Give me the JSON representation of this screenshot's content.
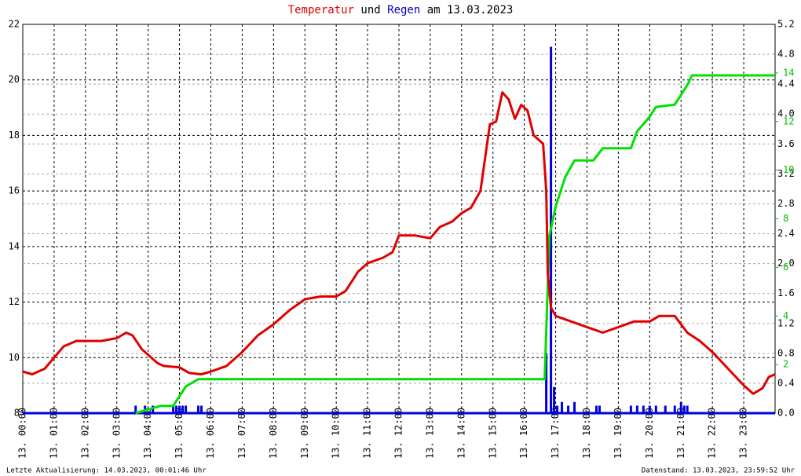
{
  "chart_data": {
    "type": "line",
    "title": [
      {
        "text": "Temperatur",
        "color": "#e00000"
      },
      {
        "text": "und",
        "color": "#000000"
      },
      {
        "text": "Regen",
        "color": "#0000c0"
      },
      {
        "text": "am 13.03.2023",
        "color": "#000000"
      }
    ],
    "footer_left": "Letzte Aktualisierung: 14.03.2023, 00:01:46 Uhr",
    "footer_right": "Datenstand: 13.03.2023, 23:59:52 Uhr",
    "xlim": [
      0,
      24
    ],
    "xticks": [
      {
        "value": 0,
        "label": "13. 00:00"
      },
      {
        "value": 1,
        "label": "13. 01:00"
      },
      {
        "value": 2,
        "label": "13. 02:00"
      },
      {
        "value": 3,
        "label": "13. 03:00"
      },
      {
        "value": 4,
        "label": "13. 04:00"
      },
      {
        "value": 5,
        "label": "13. 05:00"
      },
      {
        "value": 6,
        "label": "13. 06:00"
      },
      {
        "value": 7,
        "label": "13. 07:00"
      },
      {
        "value": 8,
        "label": "13. 08:00"
      },
      {
        "value": 9,
        "label": "13. 09:00"
      },
      {
        "value": 10,
        "label": "13. 10:00"
      },
      {
        "value": 11,
        "label": "13. 11:00"
      },
      {
        "value": 12,
        "label": "13. 12:00"
      },
      {
        "value": 13,
        "label": "13. 13:00"
      },
      {
        "value": 14,
        "label": "13. 14:00"
      },
      {
        "value": 15,
        "label": "13. 15:00"
      },
      {
        "value": 16,
        "label": "13. 16:00"
      },
      {
        "value": 17,
        "label": "13. 17:00"
      },
      {
        "value": 18,
        "label": "13. 18:00"
      },
      {
        "value": 19,
        "label": "13. 19:00"
      },
      {
        "value": 20,
        "label": "13. 20:00"
      },
      {
        "value": 21,
        "label": "13. 21:00"
      },
      {
        "value": 22,
        "label": "13. 22:00"
      },
      {
        "value": 23,
        "label": "13. 23:00"
      }
    ],
    "ylim": [
      8,
      22
    ],
    "yticks": [
      8,
      10,
      12,
      14,
      16,
      18,
      20,
      22
    ],
    "y2lim": [
      0,
      5.2
    ],
    "y2ticks": [
      {
        "value": 0,
        "label": "0.0"
      },
      {
        "value": 0.4,
        "label": "0.4"
      },
      {
        "value": 0.8,
        "label": "0.8"
      },
      {
        "value": 1.2,
        "label": "1.2"
      },
      {
        "value": 1.6,
        "label": "1.6"
      },
      {
        "value": 2,
        "label": "2.0"
      },
      {
        "value": 2.4,
        "label": "2.4"
      },
      {
        "value": 2.8,
        "label": "2.8"
      },
      {
        "value": 3.2,
        "label": "3.2"
      },
      {
        "value": 3.6,
        "label": "3.6"
      },
      {
        "value": 4,
        "label": "4.0"
      },
      {
        "value": 4.4,
        "label": "4.4"
      },
      {
        "value": 4.8,
        "label": "4.8"
      },
      {
        "value": 5.2,
        "label": "5.2"
      }
    ],
    "y3lim": [
      0,
      16
    ],
    "y3ticks": [
      2,
      4,
      6,
      8,
      10,
      12,
      14
    ],
    "y3color": "#00c000",
    "grid": true,
    "series": [
      {
        "type": "bar",
        "axis": "y2",
        "color": "#0000e0",
        "x": [
          3.6,
          3.9,
          4.15,
          4.8,
          4.9,
          5.0,
          5.1,
          5.2,
          5.6,
          5.7,
          16.7,
          16.85,
          16.95,
          17.05,
          17.2,
          17.4,
          17.6,
          18.3,
          18.4,
          19.4,
          19.6,
          19.8,
          20.0,
          20.2,
          20.5,
          20.8,
          21.0,
          21.1,
          21.2
        ],
        "values": [
          0.1,
          0.1,
          0.1,
          0.1,
          0.1,
          0.1,
          0.1,
          0.1,
          0.1,
          0.1,
          0.8,
          4.9,
          0.35,
          0.1,
          0.15,
          0.1,
          0.15,
          0.1,
          0.1,
          0.1,
          0.1,
          0.1,
          0.1,
          0.1,
          0.1,
          0.1,
          0.15,
          0.1,
          0.1
        ]
      },
      {
        "type": "line",
        "axis": "y3",
        "color": "#00e000",
        "x": [
          3.6,
          4.4,
          4.8,
          5.2,
          5.6,
          16.65,
          16.8,
          17.0,
          17.3,
          17.6,
          18.2,
          18.5,
          19.4,
          19.6,
          20.0,
          20.2,
          20.8,
          21.2,
          21.35,
          24
        ],
        "values": [
          0,
          0.3,
          0.3,
          1.1,
          1.4,
          1.4,
          7.3,
          8.5,
          9.7,
          10.4,
          10.4,
          10.9,
          10.9,
          11.6,
          12.2,
          12.6,
          12.7,
          13.5,
          13.9,
          13.9
        ]
      },
      {
        "type": "line",
        "axis": "y",
        "color": "#e00000",
        "x": [
          0,
          0.3,
          0.7,
          1.0,
          1.3,
          1.7,
          2.0,
          2.5,
          3.0,
          3.3,
          3.5,
          3.8,
          4.0,
          4.3,
          4.5,
          5.0,
          5.3,
          5.7,
          6.0,
          6.5,
          7.0,
          7.5,
          8.0,
          8.5,
          9.0,
          9.5,
          10.0,
          10.3,
          10.7,
          11.0,
          11.5,
          11.8,
          12.0,
          12.5,
          13.0,
          13.3,
          13.7,
          14.0,
          14.3,
          14.6,
          14.9,
          15.1,
          15.3,
          15.5,
          15.7,
          15.9,
          16.1,
          16.3,
          16.6,
          16.7,
          16.75,
          16.85,
          17.0,
          17.5,
          18.0,
          18.5,
          19.0,
          19.5,
          20.0,
          20.3,
          20.8,
          21.2,
          21.6,
          22.0,
          22.5,
          23.0,
          23.3,
          23.6,
          23.8,
          24.0
        ],
        "values": [
          9.5,
          9.4,
          9.6,
          10.0,
          10.4,
          10.6,
          10.6,
          10.6,
          10.7,
          10.9,
          10.8,
          10.3,
          10.1,
          9.8,
          9.7,
          9.65,
          9.45,
          9.4,
          9.5,
          9.7,
          10.2,
          10.8,
          11.2,
          11.7,
          12.1,
          12.2,
          12.2,
          12.4,
          13.1,
          13.4,
          13.6,
          13.8,
          14.4,
          14.4,
          14.3,
          14.7,
          14.9,
          15.2,
          15.4,
          16.0,
          18.4,
          18.5,
          19.55,
          19.3,
          18.6,
          19.1,
          18.9,
          18.0,
          17.7,
          16.0,
          13.0,
          11.8,
          11.5,
          11.3,
          11.1,
          10.9,
          11.1,
          11.3,
          11.3,
          11.5,
          11.5,
          10.9,
          10.6,
          10.2,
          9.6,
          9.0,
          8.7,
          8.9,
          9.3,
          9.4
        ]
      }
    ]
  }
}
